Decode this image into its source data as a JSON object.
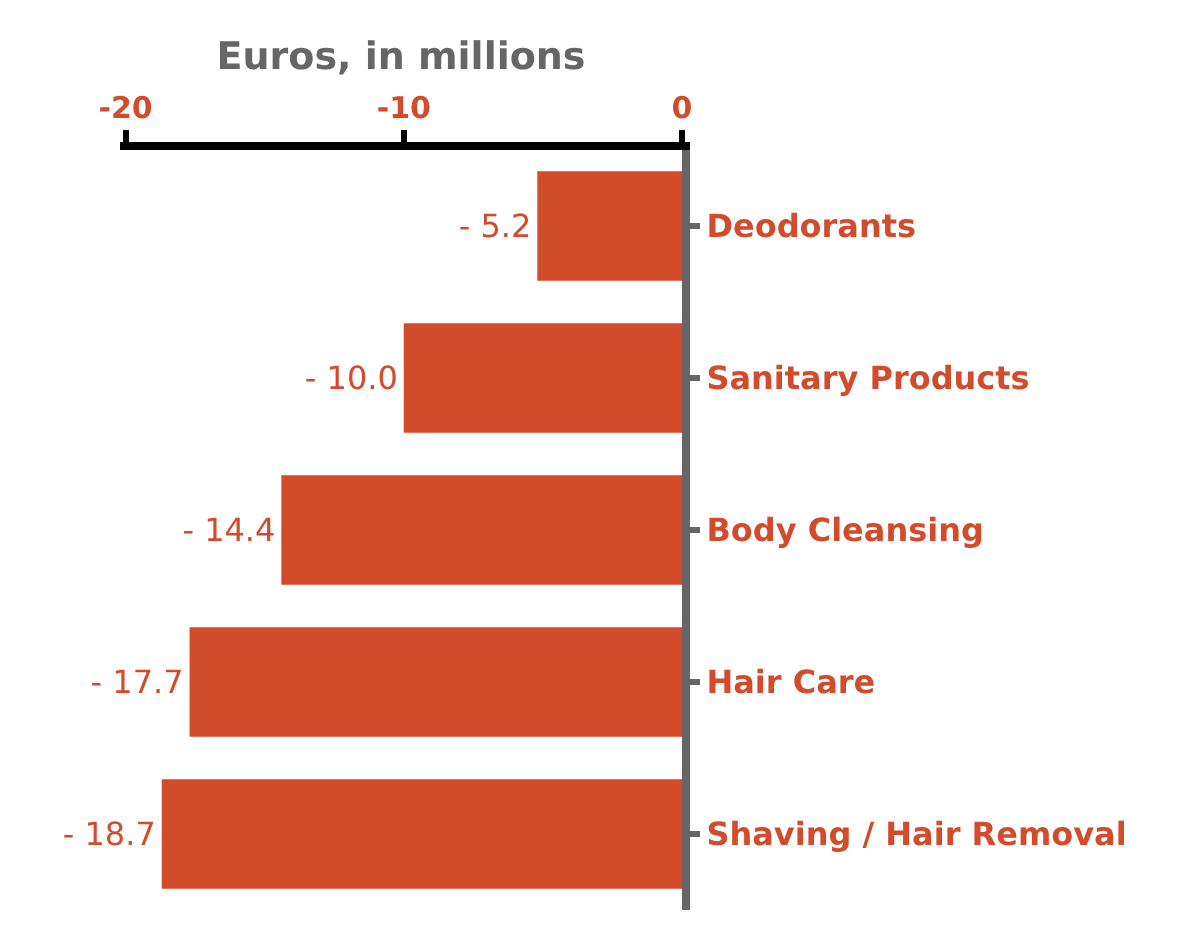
{
  "chart_data": {
    "type": "bar",
    "orientation": "horizontal",
    "xlabel": "Euros, in millions",
    "categories": [
      "Deodorants",
      "Sanitary Products",
      "Body Cleansing",
      "Hair Care",
      "Shaving / Hair Removal"
    ],
    "values": [
      -5.2,
      -10.0,
      -14.4,
      -17.7,
      -18.7
    ],
    "value_labels": [
      "- 5.2",
      "- 10.0",
      "- 14.4",
      "- 17.7",
      "- 18.7"
    ],
    "color": "#d24b2b",
    "xlim": [
      -20.2,
      0
    ],
    "xticks": [
      -20,
      -10,
      0
    ]
  }
}
